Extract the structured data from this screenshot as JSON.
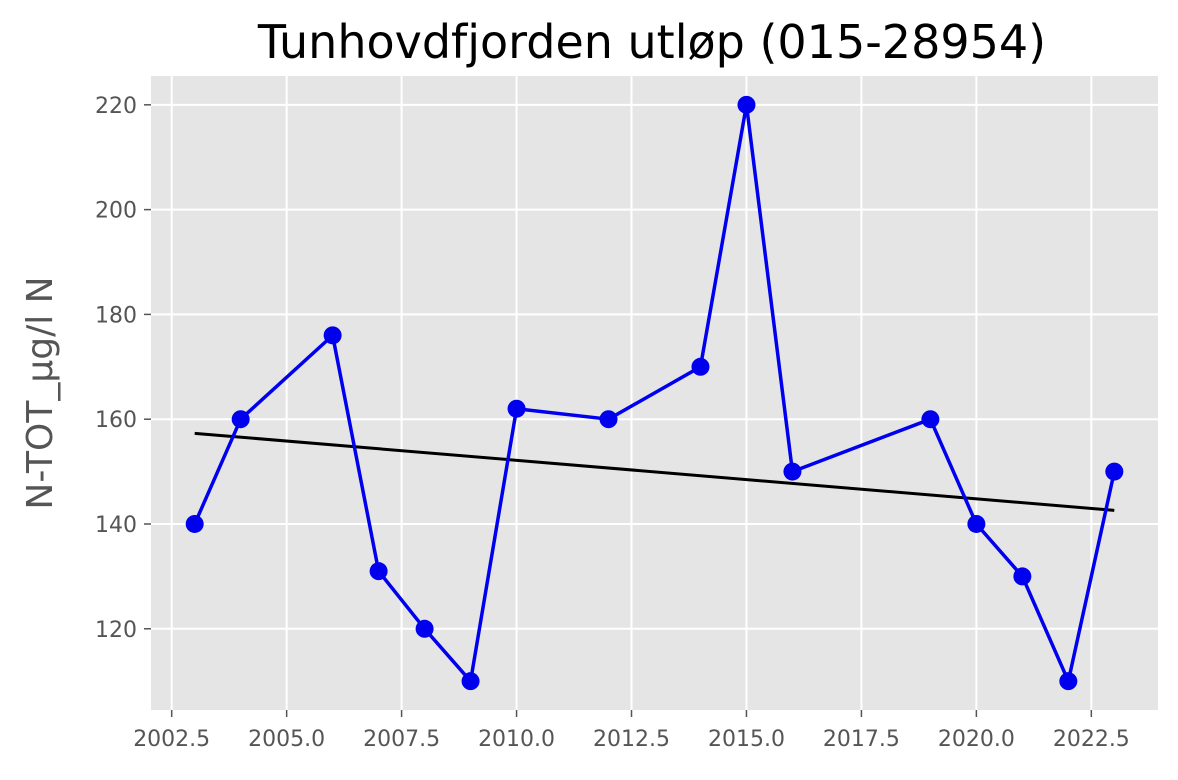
{
  "chart_data": {
    "type": "line",
    "title": "Tunhovdfjorden utløp (015-28954)",
    "xlabel": "",
    "ylabel": "N-TOT_µg/l N",
    "xlim": [
      2002.05,
      2023.95
    ],
    "ylim": [
      104.5,
      225.5
    ],
    "xticks": [
      2002.5,
      2005.0,
      2007.5,
      2010.0,
      2012.5,
      2015.0,
      2017.5,
      2020.0,
      2022.5
    ],
    "xtick_labels": [
      "2002.5",
      "2005.0",
      "2007.5",
      "2010.0",
      "2012.5",
      "2015.0",
      "2017.5",
      "2020.0",
      "2022.5"
    ],
    "yticks": [
      120,
      140,
      160,
      180,
      200,
      220
    ],
    "ytick_labels": [
      "120",
      "140",
      "160",
      "180",
      "200",
      "220"
    ],
    "grid": true,
    "background": "#e5e5e5",
    "series": [
      {
        "color": "#0000ee",
        "marker": "circle",
        "x": [
          2003,
          2004,
          2006,
          2007,
          2008,
          2009,
          2010,
          2012,
          2014,
          2015,
          2016,
          2019,
          2020,
          2021,
          2022,
          2023
        ],
        "y": [
          140,
          160,
          176,
          131,
          120,
          110,
          162,
          160,
          170,
          220,
          150,
          160,
          140,
          130,
          110,
          150
        ]
      }
    ],
    "trendline": {
      "color": "#000000",
      "x": [
        2003,
        2023
      ],
      "y": [
        157.3,
        142.6
      ]
    }
  }
}
